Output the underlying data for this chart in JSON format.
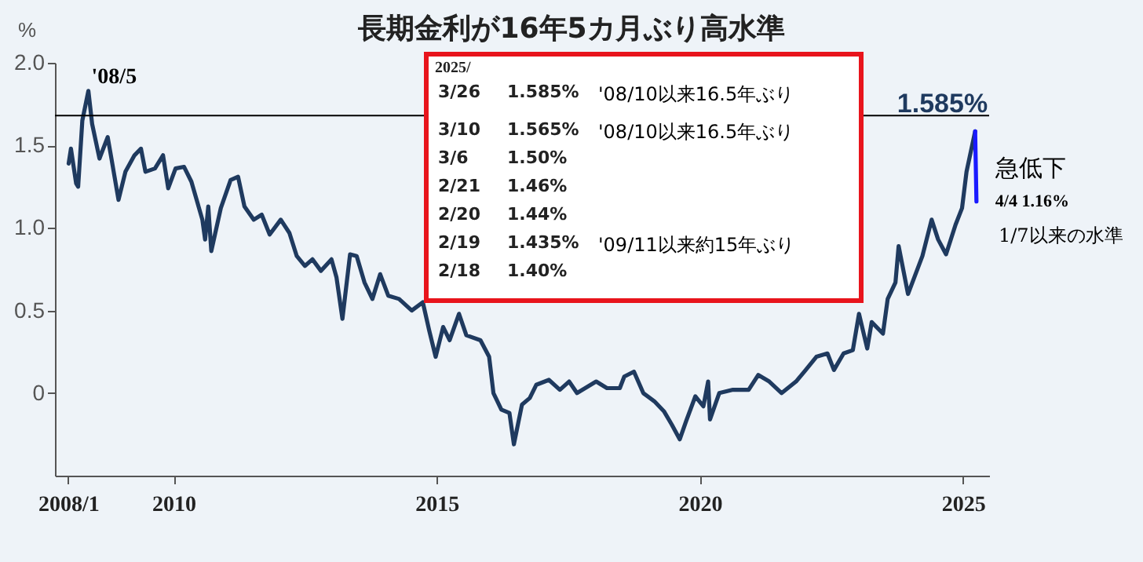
{
  "chart_data": {
    "type": "line",
    "title": "長期金利が16年5カ月ぶり高水準",
    "ylabel": "%",
    "xlim": [
      "2007-10-01",
      "2025-07-01"
    ],
    "ylim": [
      -0.5,
      2.0
    ],
    "xticks": [
      {
        "value": "2008-01",
        "label": "2008/1"
      },
      {
        "value": "2010-01",
        "label": "2010"
      },
      {
        "value": "2015-01",
        "label": "2015"
      },
      {
        "value": "2020-01",
        "label": "2020"
      },
      {
        "value": "2025-01",
        "label": "2025"
      }
    ],
    "yticks": [
      {
        "value": 2.0,
        "label": "2.0"
      },
      {
        "value": 1.5,
        "label": "1.5"
      },
      {
        "value": 1.0,
        "label": "1.0"
      },
      {
        "value": 0.5,
        "label": "0.5"
      },
      {
        "value": 0,
        "label": "0"
      }
    ],
    "grid": false,
    "legend": false,
    "ref_lines": [
      {
        "axis": "y",
        "value": 1.68,
        "color": "#000000"
      }
    ],
    "series": [
      {
        "color": "#1f3a5f",
        "x": [
          "2008-01-04",
          "2008-01-20",
          "2008-02-25",
          "2008-03-10",
          "2008-04-08",
          "2008-05-20",
          "2008-06-15",
          "2008-08-05",
          "2008-10-01",
          "2008-10-25",
          "2008-12-15",
          "2009-02-01",
          "2009-04-05",
          "2009-05-20",
          "2009-06-20",
          "2009-08-25",
          "2009-10-20",
          "2009-11-25",
          "2010-01-15",
          "2010-03-15",
          "2010-05-05",
          "2010-07-20",
          "2010-08-08",
          "2010-08-30",
          "2010-09-20",
          "2010-11-25",
          "2011-02-01",
          "2011-03-25",
          "2011-05-08",
          "2011-07-12",
          "2011-09-05",
          "2011-10-30",
          "2012-01-15",
          "2012-03-15",
          "2012-05-05",
          "2012-07-01",
          "2012-08-22",
          "2012-10-20",
          "2013-01-01",
          "2013-02-05",
          "2013-03-18",
          "2013-05-10",
          "2013-06-25",
          "2013-08-18",
          "2013-10-12",
          "2013-12-05",
          "2014-01-30",
          "2014-04-15",
          "2014-07-12",
          "2014-09-27",
          "2014-11-10",
          "2014-12-25",
          "2015-02-15",
          "2015-04-01",
          "2015-06-05",
          "2015-07-26",
          "2015-11-01",
          "2015-12-31",
          "2016-01-30",
          "2016-03-25",
          "2016-05-20",
          "2016-06-20",
          "2016-08-15",
          "2016-10-08",
          "2016-11-22",
          "2017-02-18",
          "2017-05-05",
          "2017-07-08",
          "2017-09-01",
          "2018-01-12",
          "2018-03-28",
          "2018-06-25",
          "2018-07-26",
          "2018-10-01",
          "2018-12-05",
          "2019-02-20",
          "2019-04-27",
          "2019-06-20",
          "2019-08-15",
          "2019-09-28",
          "2019-12-01",
          "2020-01-26",
          "2020-02-28",
          "2020-03-12",
          "2020-05-15",
          "2020-08-18",
          "2020-12-05",
          "2021-02-10",
          "2021-04-27",
          "2021-07-22",
          "2021-10-30",
          "2022-01-05",
          "2022-03-20",
          "2022-06-05",
          "2022-07-20",
          "2022-09-25",
          "2022-11-28",
          "2023-01-10",
          "2023-03-08",
          "2023-04-08",
          "2023-06-25",
          "2023-07-28",
          "2023-09-20",
          "2023-10-12",
          "2023-12-16",
          "2024-03-25",
          "2024-05-28",
          "2024-07-12",
          "2024-09-05",
          "2024-11-10",
          "2024-12-25",
          "2025-01-25",
          "2025-03-26"
        ],
        "values": [
          1.39,
          1.48,
          1.27,
          1.25,
          1.65,
          1.83,
          1.63,
          1.42,
          1.55,
          1.43,
          1.17,
          1.34,
          1.44,
          1.48,
          1.34,
          1.36,
          1.44,
          1.24,
          1.36,
          1.37,
          1.28,
          1.05,
          0.93,
          1.13,
          0.86,
          1.12,
          1.29,
          1.31,
          1.13,
          1.05,
          1.08,
          0.96,
          1.05,
          0.97,
          0.83,
          0.77,
          0.81,
          0.74,
          0.81,
          0.7,
          0.45,
          0.84,
          0.83,
          0.67,
          0.57,
          0.72,
          0.59,
          0.57,
          0.5,
          0.55,
          0.38,
          0.22,
          0.4,
          0.32,
          0.48,
          0.35,
          0.32,
          0.22,
          0.0,
          -0.1,
          -0.12,
          -0.31,
          -0.07,
          -0.03,
          0.05,
          0.08,
          0.02,
          0.07,
          0.0,
          0.07,
          0.03,
          0.03,
          0.1,
          0.13,
          0.0,
          -0.05,
          -0.11,
          -0.19,
          -0.28,
          -0.17,
          -0.02,
          -0.08,
          0.07,
          -0.16,
          0.0,
          0.02,
          0.02,
          0.11,
          0.07,
          0.0,
          0.07,
          0.14,
          0.22,
          0.24,
          0.14,
          0.24,
          0.26,
          0.48,
          0.27,
          0.43,
          0.36,
          0.57,
          0.67,
          0.89,
          0.6,
          0.83,
          1.05,
          0.93,
          0.84,
          1.02,
          1.12,
          1.34,
          1.585
        ]
      },
      {
        "color": "#1a1aff",
        "x": [
          "2025-03-26",
          "2025-04-04"
        ],
        "values": [
          1.585,
          1.16
        ]
      }
    ],
    "annotations": [
      "2025/",
      "3/26",
      "1.585%",
      "'08/10以来16.5年ぶり",
      "3/10",
      "1.565%",
      "'08/10以来16.5年ぶり",
      "3/6",
      "1.50%",
      "2/21",
      "1.46%",
      "2/20",
      "1.44%",
      "2/19",
      "1.435%",
      "'09/11以来約15年ぶり",
      "2/18",
      "1.40%",
      {
        "text": "1.585%",
        "x": "2025-03-26",
        "y": 1.585
      },
      "急低下",
      {
        "text": "4/4  1.16%",
        "x": "2025-04-04",
        "y": 1.16
      },
      "1/7以来の水準",
      {
        "text": "'08/5",
        "x": "2008-05-20",
        "y": 1.83
      }
    ]
  }
}
